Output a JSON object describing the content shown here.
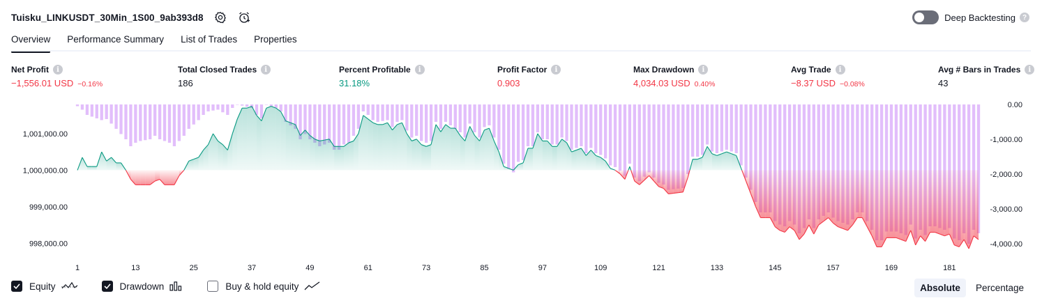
{
  "strategy": {
    "title": "Tuisku_LINKUSDT_30Min_1S00_9ab393d8"
  },
  "deep_backtesting": {
    "label": "Deep Backtesting",
    "enabled": false
  },
  "tabs": [
    {
      "label": "Overview",
      "active": true
    },
    {
      "label": "Performance Summary",
      "active": false
    },
    {
      "label": "List of Trades",
      "active": false
    },
    {
      "label": "Properties",
      "active": false
    }
  ],
  "metrics": {
    "net_profit": {
      "label": "Net Profit",
      "value": "−1,556.01 USD",
      "sub": "−0.16%"
    },
    "total_closed_trades": {
      "label": "Total Closed Trades",
      "value": "186"
    },
    "percent_profitable": {
      "label": "Percent Profitable",
      "value": "31.18%"
    },
    "profit_factor": {
      "label": "Profit Factor",
      "value": "0.903"
    },
    "max_drawdown": {
      "label": "Max Drawdown",
      "value": "4,034.03 USD",
      "sub": "0.40%"
    },
    "avg_trade": {
      "label": "Avg Trade",
      "value": "−8.37 USD",
      "sub": "−0.08%"
    },
    "avg_bars": {
      "label": "Avg # Bars in Trades",
      "value": "43"
    }
  },
  "colors": {
    "profit": "#089981",
    "loss": "#f23645",
    "drawdown": "#ce93f8"
  },
  "legend": {
    "equity": {
      "label": "Equity",
      "checked": true
    },
    "drawdown": {
      "label": "Drawdown",
      "checked": true
    },
    "buy_hold": {
      "label": "Buy & hold equity",
      "checked": false
    }
  },
  "view_mode": {
    "absolute": "Absolute",
    "percentage": "Percentage",
    "active": "absolute"
  },
  "chart_data": {
    "type": "line",
    "baseline": 1000000,
    "left_axis": {
      "ticks": [
        "1,001,000.00",
        "1,000,000.00",
        "999,000.00",
        "998,000.00"
      ],
      "values": [
        1001000,
        1000000,
        999000,
        998000
      ],
      "range": [
        997700,
        1001800
      ]
    },
    "right_axis": {
      "ticks": [
        "0.00",
        "-1,000.00",
        "-2,000.00",
        "-3,000.00",
        "-4,000.00"
      ],
      "values": [
        0,
        -1000,
        -2000,
        -3000,
        -4000
      ],
      "range": [
        -4300,
        0
      ]
    },
    "x_ticks": [
      1,
      13,
      25,
      37,
      49,
      61,
      73,
      85,
      97,
      109,
      121,
      133,
      145,
      157,
      169,
      181
    ],
    "x_range": [
      1,
      187
    ],
    "equity_keypoints": [
      [
        1,
        1000000
      ],
      [
        2,
        1000350
      ],
      [
        3,
        1000100
      ],
      [
        5,
        1000100
      ],
      [
        6,
        1000500
      ],
      [
        7,
        1000250
      ],
      [
        8,
        1000350
      ],
      [
        9,
        1000200
      ],
      [
        10,
        1000200
      ],
      [
        11,
        1000000
      ],
      [
        12,
        999750
      ],
      [
        13,
        999600
      ],
      [
        16,
        999600
      ],
      [
        17,
        999700
      ],
      [
        18,
        999750
      ],
      [
        19,
        999600
      ],
      [
        21,
        999600
      ],
      [
        22,
        999850
      ],
      [
        23,
        1000000
      ],
      [
        24,
        1000250
      ],
      [
        26,
        1000350
      ],
      [
        27,
        1000550
      ],
      [
        28,
        1000700
      ],
      [
        29,
        1001000
      ],
      [
        30,
        1000800
      ],
      [
        31,
        1000700
      ],
      [
        32,
        1000550
      ],
      [
        33,
        1001000
      ],
      [
        34,
        1001400
      ],
      [
        35,
        1001700
      ],
      [
        36,
        1001700
      ],
      [
        37,
        1001750
      ],
      [
        38,
        1001500
      ],
      [
        39,
        1001350
      ],
      [
        40,
        1001700
      ],
      [
        41,
        1001750
      ],
      [
        42,
        1001700
      ],
      [
        43,
        1001600
      ],
      [
        44,
        1001350
      ],
      [
        46,
        1001250
      ],
      [
        47,
        1000950
      ],
      [
        48,
        1001100
      ],
      [
        49,
        1000950
      ],
      [
        50,
        1000850
      ],
      [
        51,
        1000800
      ],
      [
        53,
        1000850
      ],
      [
        54,
        1000650
      ],
      [
        56,
        1000650
      ],
      [
        57,
        1000750
      ],
      [
        58,
        1000800
      ],
      [
        59,
        1001000
      ],
      [
        60,
        1001500
      ],
      [
        61,
        1001400
      ],
      [
        62,
        1001300
      ],
      [
        63,
        1001250
      ],
      [
        64,
        1001250
      ],
      [
        65,
        1001300
      ],
      [
        66,
        1001100
      ],
      [
        67,
        1001250
      ],
      [
        68,
        1001300
      ],
      [
        69,
        1001000
      ],
      [
        70,
        1000800
      ],
      [
        71,
        1000850
      ],
      [
        72,
        1000700
      ],
      [
        73,
        1000650
      ],
      [
        74,
        1000700
      ],
      [
        75,
        1001250
      ],
      [
        76,
        1001050
      ],
      [
        77,
        1001250
      ],
      [
        78,
        1001150
      ],
      [
        79,
        1001150
      ],
      [
        80,
        1000950
      ],
      [
        81,
        1000800
      ],
      [
        82,
        1001200
      ],
      [
        83,
        1000950
      ],
      [
        84,
        1000800
      ],
      [
        85,
        1001100
      ],
      [
        86,
        1001150
      ],
      [
        87,
        1000800
      ],
      [
        88,
        1000500
      ],
      [
        89,
        1000100
      ],
      [
        91,
        1000000
      ],
      [
        92,
        1000150
      ],
      [
        93,
        1000200
      ],
      [
        94,
        1000600
      ],
      [
        95,
        1000600
      ],
      [
        96,
        1001000
      ],
      [
        97,
        1000800
      ],
      [
        98,
        1000800
      ],
      [
        99,
        1000650
      ],
      [
        100,
        1000650
      ],
      [
        101,
        1000850
      ],
      [
        102,
        1000750
      ],
      [
        103,
        1000500
      ],
      [
        105,
        1000600
      ],
      [
        106,
        1000400
      ],
      [
        107,
        1000550
      ],
      [
        108,
        1000400
      ],
      [
        109,
        1000350
      ],
      [
        110,
        1000250
      ],
      [
        111,
        1000050
      ],
      [
        112,
        1000000
      ],
      [
        113,
        999900
      ],
      [
        114,
        999750
      ],
      [
        115,
        1000100
      ],
      [
        116,
        999700
      ],
      [
        117,
        999600
      ],
      [
        119,
        999850
      ],
      [
        120,
        999700
      ],
      [
        121,
        999550
      ],
      [
        122,
        999500
      ],
      [
        123,
        999350
      ],
      [
        126,
        999400
      ],
      [
        127,
        999800
      ],
      [
        128,
        1000300
      ],
      [
        129,
        1000300
      ],
      [
        130,
        1000350
      ],
      [
        131,
        1000650
      ],
      [
        132,
        1000450
      ],
      [
        133,
        1000400
      ],
      [
        134,
        1000450
      ],
      [
        135,
        1000500
      ],
      [
        136,
        1000450
      ],
      [
        137,
        1000400
      ],
      [
        138,
        1000050
      ],
      [
        139,
        999700
      ],
      [
        140,
        999350
      ],
      [
        141,
        999000
      ],
      [
        142,
        998700
      ],
      [
        144,
        998700
      ],
      [
        145,
        998450
      ],
      [
        146,
        998350
      ],
      [
        147,
        998300
      ],
      [
        148,
        998450
      ],
      [
        149,
        998350
      ],
      [
        150,
        998100
      ],
      [
        151,
        998250
      ],
      [
        152,
        998500
      ],
      [
        153,
        998250
      ],
      [
        154,
        998500
      ],
      [
        156,
        998700
      ],
      [
        157,
        998550
      ],
      [
        158,
        998450
      ],
      [
        159,
        998400
      ],
      [
        160,
        998350
      ],
      [
        161,
        998500
      ],
      [
        162,
        998700
      ],
      [
        163,
        998700
      ],
      [
        164,
        998450
      ],
      [
        165,
        998200
      ],
      [
        166,
        997900
      ],
      [
        167,
        997900
      ],
      [
        168,
        998150
      ],
      [
        169,
        998150
      ],
      [
        170,
        998150
      ],
      [
        171,
        998100
      ],
      [
        172,
        998050
      ],
      [
        173,
        998350
      ],
      [
        174,
        997950
      ],
      [
        175,
        998200
      ],
      [
        176,
        998050
      ],
      [
        177,
        998300
      ],
      [
        178,
        998300
      ],
      [
        179,
        998250
      ],
      [
        180,
        998200
      ],
      [
        181,
        998250
      ],
      [
        182,
        997950
      ],
      [
        183,
        997900
      ],
      [
        184,
        998100
      ],
      [
        185,
        997850
      ],
      [
        186,
        998200
      ],
      [
        187,
        998100
      ]
    ],
    "drawdown_keypoints": [
      [
        1,
        -50
      ],
      [
        2,
        -150
      ],
      [
        3,
        -300
      ],
      [
        5,
        -400
      ],
      [
        6,
        -450
      ],
      [
        7,
        -420
      ],
      [
        8,
        -550
      ],
      [
        9,
        -700
      ],
      [
        10,
        -850
      ],
      [
        11,
        -1000
      ],
      [
        12,
        -1200
      ],
      [
        13,
        -1100
      ],
      [
        14,
        -1050
      ],
      [
        16,
        -1000
      ],
      [
        17,
        -900
      ],
      [
        18,
        -1000
      ],
      [
        20,
        -1100
      ],
      [
        21,
        -1200
      ],
      [
        22,
        -1050
      ],
      [
        23,
        -900
      ],
      [
        24,
        -700
      ],
      [
        26,
        -450
      ],
      [
        27,
        -300
      ],
      [
        28,
        -200
      ],
      [
        30,
        -150
      ],
      [
        32,
        -300
      ],
      [
        33,
        -100
      ],
      [
        34,
        0
      ],
      [
        37,
        -100
      ],
      [
        38,
        -300
      ],
      [
        39,
        -400
      ],
      [
        40,
        0
      ],
      [
        42,
        -100
      ],
      [
        43,
        -200
      ],
      [
        44,
        -500
      ],
      [
        46,
        -700
      ],
      [
        47,
        -1000
      ],
      [
        48,
        -850
      ],
      [
        49,
        -1000
      ],
      [
        50,
        -1100
      ],
      [
        51,
        -1200
      ],
      [
        53,
        -1100
      ],
      [
        54,
        -1300
      ],
      [
        55,
        -1300
      ],
      [
        56,
        -1150
      ],
      [
        57,
        -1100
      ],
      [
        58,
        -900
      ],
      [
        59,
        -700
      ],
      [
        60,
        -200
      ],
      [
        61,
        -300
      ],
      [
        62,
        -450
      ],
      [
        63,
        -500
      ],
      [
        65,
        -450
      ],
      [
        66,
        -650
      ],
      [
        67,
        -500
      ],
      [
        68,
        -450
      ],
      [
        69,
        -750
      ],
      [
        70,
        -950
      ],
      [
        71,
        -900
      ],
      [
        72,
        -1050
      ],
      [
        73,
        -1100
      ],
      [
        74,
        -1050
      ],
      [
        75,
        -500
      ],
      [
        76,
        -700
      ],
      [
        77,
        -500
      ],
      [
        78,
        -600
      ],
      [
        80,
        -800
      ],
      [
        81,
        -950
      ],
      [
        82,
        -550
      ],
      [
        83,
        -800
      ],
      [
        84,
        -950
      ],
      [
        85,
        -650
      ],
      [
        86,
        -600
      ],
      [
        87,
        -950
      ],
      [
        88,
        -1300
      ],
      [
        89,
        -1700
      ],
      [
        90,
        -1850
      ],
      [
        91,
        -1950
      ],
      [
        92,
        -1650
      ],
      [
        93,
        -1600
      ],
      [
        94,
        -1200
      ],
      [
        95,
        -1200
      ],
      [
        96,
        -800
      ],
      [
        97,
        -1000
      ],
      [
        98,
        -1000
      ],
      [
        99,
        -1150
      ],
      [
        100,
        -1150
      ],
      [
        101,
        -950
      ],
      [
        102,
        -1050
      ],
      [
        103,
        -1300
      ],
      [
        105,
        -1200
      ],
      [
        106,
        -1400
      ],
      [
        107,
        -1250
      ],
      [
        108,
        -1400
      ],
      [
        109,
        -1450
      ],
      [
        110,
        -1550
      ],
      [
        111,
        -1750
      ],
      [
        112,
        -1800
      ],
      [
        113,
        -1900
      ],
      [
        114,
        -2050
      ],
      [
        115,
        -1700
      ],
      [
        116,
        -2100
      ],
      [
        117,
        -2200
      ],
      [
        119,
        -1950
      ],
      [
        120,
        -2100
      ],
      [
        121,
        -2250
      ],
      [
        122,
        -2300
      ],
      [
        123,
        -2450
      ],
      [
        126,
        -2400
      ],
      [
        127,
        -2000
      ],
      [
        128,
        -1500
      ],
      [
        129,
        -1500
      ],
      [
        130,
        -1450
      ],
      [
        131,
        -1150
      ],
      [
        132,
        -1350
      ],
      [
        133,
        -1400
      ],
      [
        134,
        -1350
      ],
      [
        135,
        -1300
      ],
      [
        136,
        -1350
      ],
      [
        137,
        -1400
      ],
      [
        138,
        -1750
      ],
      [
        139,
        -2100
      ],
      [
        140,
        -2450
      ],
      [
        141,
        -2800
      ],
      [
        142,
        -3100
      ],
      [
        144,
        -3100
      ],
      [
        145,
        -3350
      ],
      [
        146,
        -3450
      ],
      [
        147,
        -3500
      ],
      [
        148,
        -3350
      ],
      [
        149,
        -3450
      ],
      [
        150,
        -3700
      ],
      [
        151,
        -3550
      ],
      [
        152,
        -3300
      ],
      [
        153,
        -3550
      ],
      [
        154,
        -3300
      ],
      [
        156,
        -3100
      ],
      [
        157,
        -3250
      ],
      [
        158,
        -3350
      ],
      [
        159,
        -3400
      ],
      [
        160,
        -3450
      ],
      [
        161,
        -3300
      ],
      [
        162,
        -3100
      ],
      [
        163,
        -3100
      ],
      [
        164,
        -3350
      ],
      [
        165,
        -3600
      ],
      [
        166,
        -3900
      ],
      [
        167,
        -3900
      ],
      [
        168,
        -3650
      ],
      [
        169,
        -3650
      ],
      [
        170,
        -3650
      ],
      [
        171,
        -3700
      ],
      [
        172,
        -3750
      ],
      [
        173,
        -3450
      ],
      [
        174,
        -3850
      ],
      [
        175,
        -3600
      ],
      [
        176,
        -3750
      ],
      [
        177,
        -3500
      ],
      [
        178,
        -3500
      ],
      [
        179,
        -3550
      ],
      [
        180,
        -3600
      ],
      [
        181,
        -3550
      ],
      [
        182,
        -3850
      ],
      [
        183,
        -3900
      ],
      [
        184,
        -3700
      ],
      [
        185,
        -4000
      ],
      [
        186,
        -3600
      ],
      [
        187,
        -3700
      ]
    ]
  }
}
